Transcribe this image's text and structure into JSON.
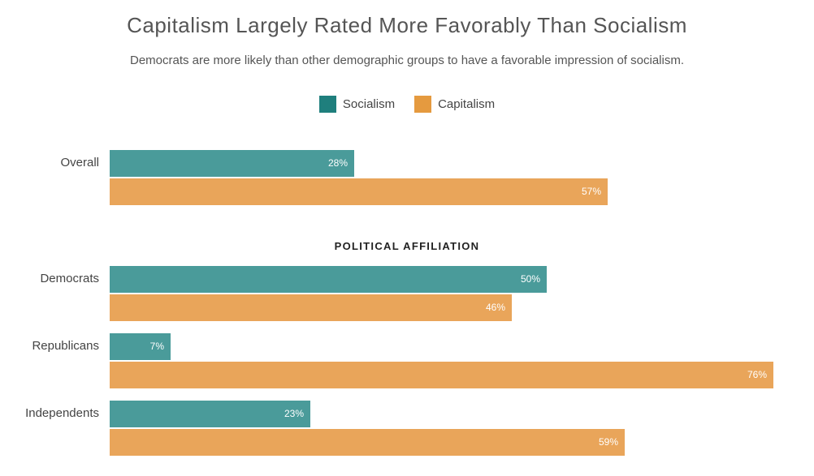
{
  "chart_data": {
    "type": "bar",
    "orientation": "horizontal",
    "title": "Capitalism Largely Rated More Favorably Than Socialism",
    "subtitle": "Democrats are more likely than other demographic groups to have a favorable impression of socialism.",
    "section_header": "POLITICAL AFFILIATION",
    "categories": [
      "Overall",
      "Democrats",
      "Republicans",
      "Independents"
    ],
    "series": [
      {
        "name": "Socialism",
        "color": "#4a9b9a",
        "values": [
          28,
          50,
          7,
          23
        ],
        "labels": [
          "28%",
          "50%",
          "7%",
          "23%"
        ]
      },
      {
        "name": "Capitalism",
        "color": "#e9a55a",
        "values": [
          57,
          46,
          76,
          59
        ],
        "labels": [
          "57%",
          "46%",
          "76%",
          "59%"
        ]
      }
    ],
    "legend": {
      "placement": "top-center",
      "items": [
        {
          "name": "Socialism",
          "color": "#1f7f7d"
        },
        {
          "name": "Capitalism",
          "color": "#e59a3f"
        }
      ]
    },
    "xlim": [
      0,
      76
    ],
    "grid": false
  }
}
